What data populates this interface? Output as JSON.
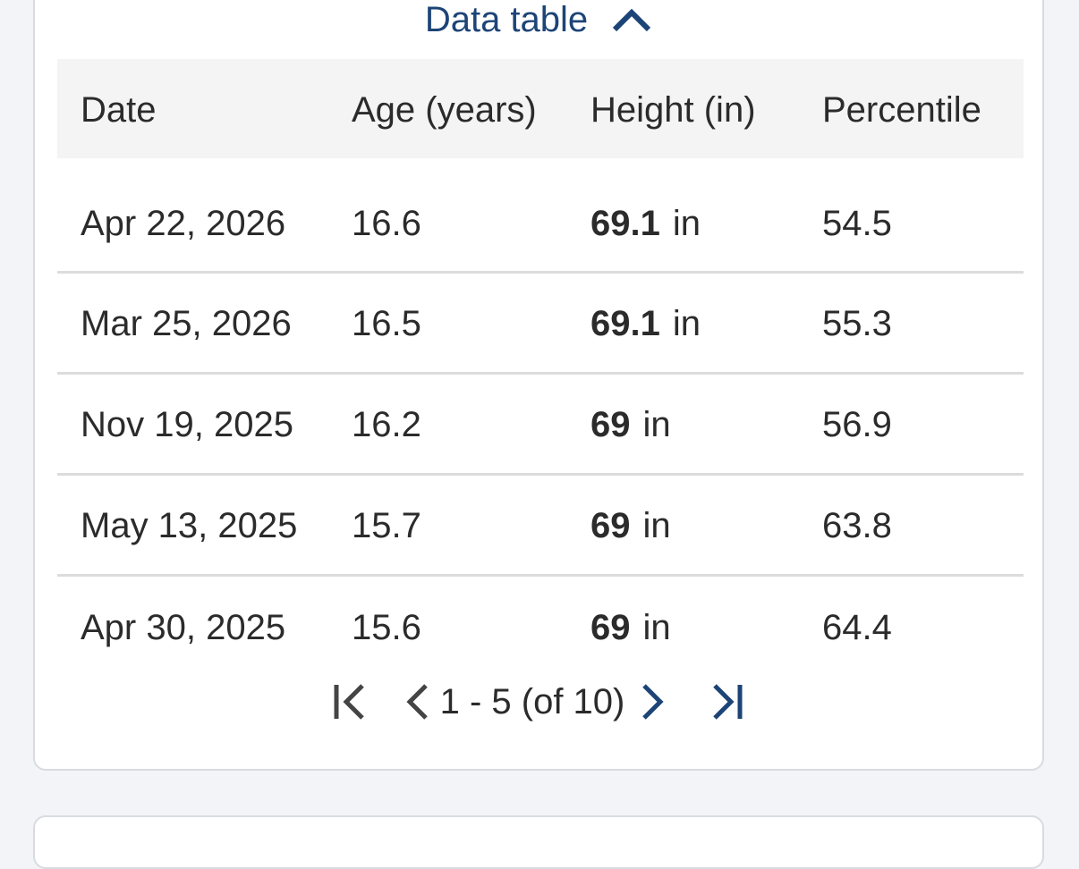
{
  "data_table": {
    "toggle_label": "Data table",
    "toggle_icon": "chevron-up-icon",
    "columns": [
      "Date",
      "Age (years)",
      "Height (in)",
      "Percentile"
    ],
    "rows": [
      {
        "date": "Apr 22, 2026",
        "age": "16.6",
        "height": "69.1",
        "unit": "in",
        "percentile": "54.5"
      },
      {
        "date": "Mar 25, 2026",
        "age": "16.5",
        "height": "69.1",
        "unit": "in",
        "percentile": "55.3"
      },
      {
        "date": "Nov 19, 2025",
        "age": "16.2",
        "height": "69",
        "unit": "in",
        "percentile": "56.9"
      },
      {
        "date": "May 13, 2025",
        "age": "15.7",
        "height": "69",
        "unit": "in",
        "percentile": "63.8"
      },
      {
        "date": "Apr 30, 2025",
        "age": "15.6",
        "height": "69",
        "unit": "in",
        "percentile": "64.4"
      }
    ],
    "pagination": {
      "range_text": "1 - 5 (of 10)",
      "first_icon": "first-page-icon",
      "prev_icon": "chevron-left-icon",
      "next_icon": "chevron-right-icon",
      "last_icon": "last-page-icon"
    }
  },
  "colors": {
    "accent": "#1d4477",
    "text": "#2b2b2b",
    "header_bg": "#f4f4f4",
    "divider": "#dcdcdc",
    "page_bg": "#f3f4f7"
  }
}
